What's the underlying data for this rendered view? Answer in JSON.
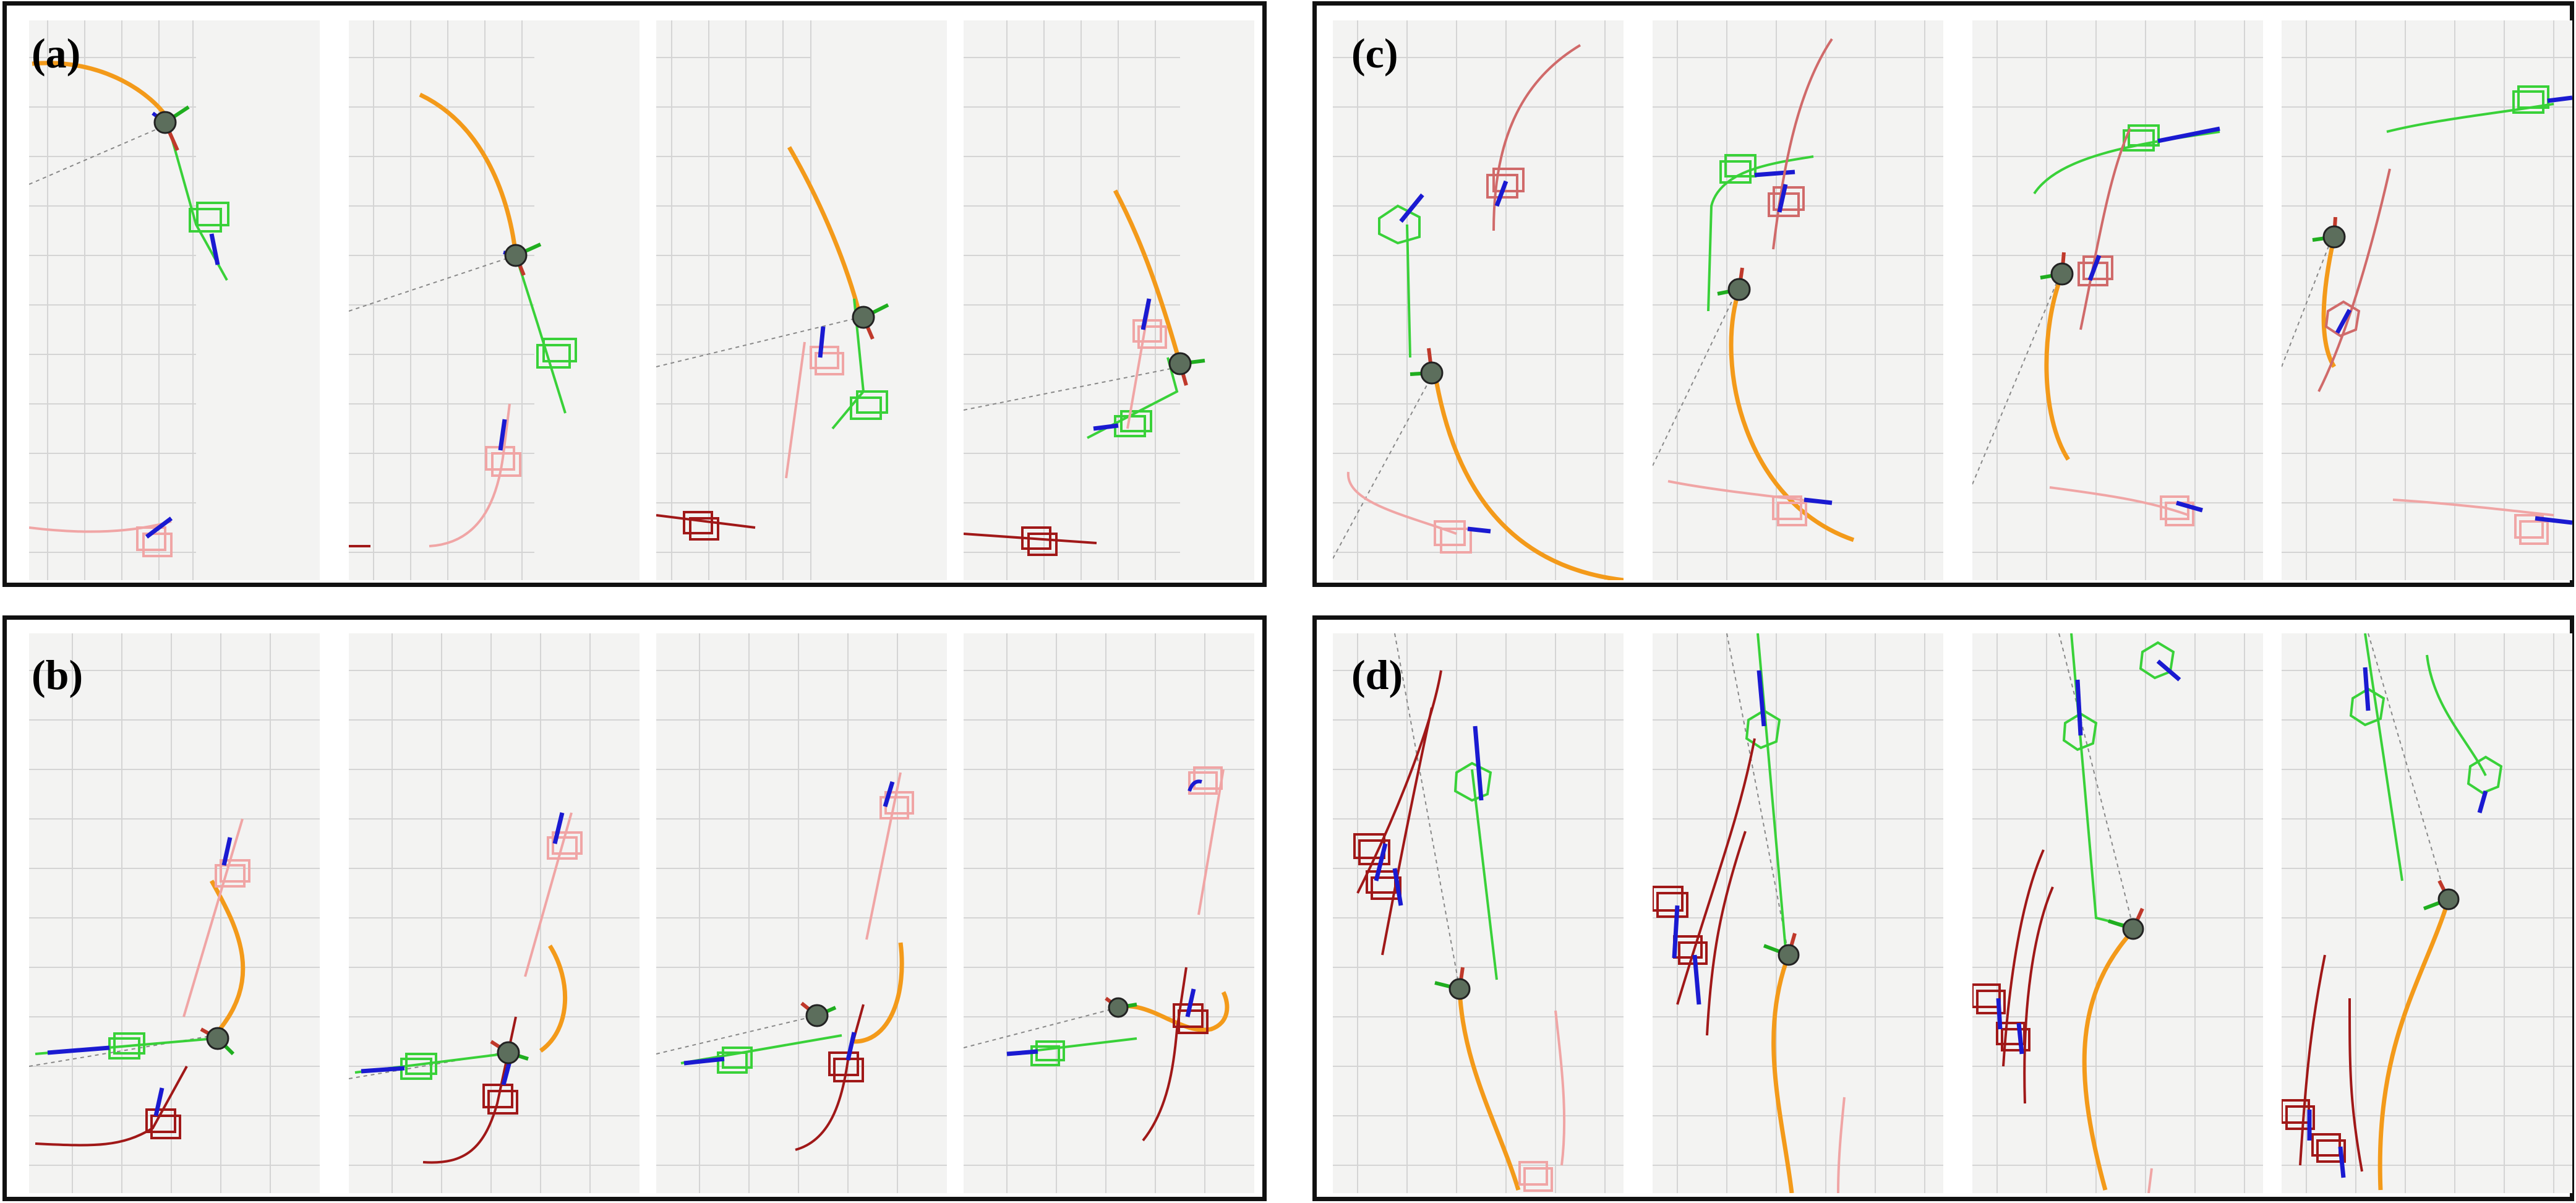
{
  "panels": [
    {
      "id": "a",
      "label": "(a)"
    },
    {
      "id": "b",
      "label": "(b)"
    },
    {
      "id": "c",
      "label": "(c)"
    },
    {
      "id": "d",
      "label": "(d)"
    }
  ],
  "colors": {
    "background": "#f3f3f2",
    "grid": "#d4d4d4",
    "ego_trajectory": "#f39a1a",
    "agent_green": "#39d139",
    "agent_pink": "#f0a5a5",
    "agent_red": "#a01818",
    "axis_red": "#c0392b",
    "axis_green": "#1fae1f",
    "axis_blue": "#1a1ad1",
    "ego_body": "#5c6e5c"
  }
}
